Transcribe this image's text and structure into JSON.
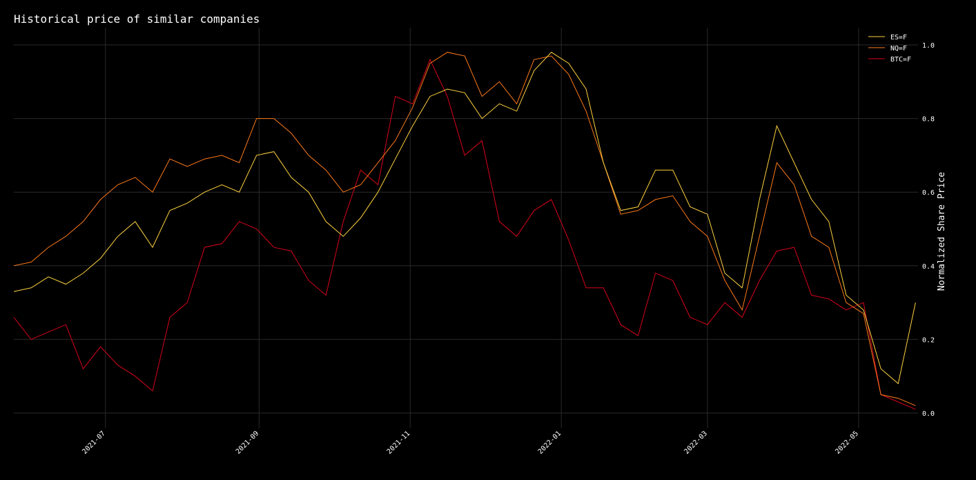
{
  "chart_data": {
    "type": "line",
    "title": "Historical price of similar companies",
    "xlabel": "",
    "ylabel": "Normalized Share Price",
    "ylim": [
      0.0,
      1.0
    ],
    "yticks": [
      0.0,
      0.2,
      0.4,
      0.6,
      0.8,
      1.0
    ],
    "ytick_labels": [
      "0.0",
      "0.2",
      "0.4",
      "0.6",
      "0.8",
      "1.0"
    ],
    "xticks": [
      "2021-07-01",
      "2021-09-01",
      "2021-11-01",
      "2022-01-01",
      "2022-03-01",
      "2022-05-01"
    ],
    "xtick_labels": [
      "2021-07",
      "2021-09",
      "2021-11",
      "2022-01",
      "2022-03",
      "2022-05"
    ],
    "xlim": [
      "2021-05-25",
      "2022-05-25"
    ],
    "grid": true,
    "legend_position": "top-right",
    "colors": {
      "ES=F": "#ffd23f",
      "NQ=F": "#ff7a1a",
      "BTC=F": "#d9001b"
    },
    "series": [
      {
        "name": "ES=F",
        "x": [
          "2021-05-25",
          "2021-06-01",
          "2021-06-08",
          "2021-06-15",
          "2021-06-22",
          "2021-06-29",
          "2021-07-06",
          "2021-07-13",
          "2021-07-20",
          "2021-07-27",
          "2021-08-03",
          "2021-08-10",
          "2021-08-17",
          "2021-08-24",
          "2021-08-31",
          "2021-09-07",
          "2021-09-14",
          "2021-09-21",
          "2021-09-28",
          "2021-10-05",
          "2021-10-12",
          "2021-10-19",
          "2021-10-26",
          "2021-11-02",
          "2021-11-09",
          "2021-11-16",
          "2021-11-23",
          "2021-11-30",
          "2021-12-07",
          "2021-12-14",
          "2021-12-21",
          "2021-12-28",
          "2022-01-04",
          "2022-01-11",
          "2022-01-18",
          "2022-01-25",
          "2022-02-01",
          "2022-02-08",
          "2022-02-15",
          "2022-02-22",
          "2022-03-01",
          "2022-03-08",
          "2022-03-15",
          "2022-03-22",
          "2022-03-29",
          "2022-04-05",
          "2022-04-12",
          "2022-04-19",
          "2022-04-26",
          "2022-05-03",
          "2022-05-10",
          "2022-05-17",
          "2022-05-24"
        ],
        "values": [
          0.33,
          0.34,
          0.37,
          0.35,
          0.38,
          0.42,
          0.48,
          0.52,
          0.45,
          0.55,
          0.57,
          0.6,
          0.62,
          0.6,
          0.7,
          0.71,
          0.64,
          0.6,
          0.52,
          0.48,
          0.53,
          0.6,
          0.69,
          0.78,
          0.86,
          0.88,
          0.87,
          0.8,
          0.84,
          0.82,
          0.93,
          0.98,
          0.95,
          0.88,
          0.68,
          0.55,
          0.56,
          0.66,
          0.66,
          0.56,
          0.54,
          0.38,
          0.34,
          0.58,
          0.78,
          0.68,
          0.58,
          0.52,
          0.32,
          0.28,
          0.12,
          0.08,
          0.3
        ]
      },
      {
        "name": "NQ=F",
        "x": [
          "2021-05-25",
          "2021-06-01",
          "2021-06-08",
          "2021-06-15",
          "2021-06-22",
          "2021-06-29",
          "2021-07-06",
          "2021-07-13",
          "2021-07-20",
          "2021-07-27",
          "2021-08-03",
          "2021-08-10",
          "2021-08-17",
          "2021-08-24",
          "2021-08-31",
          "2021-09-07",
          "2021-09-14",
          "2021-09-21",
          "2021-09-28",
          "2021-10-05",
          "2021-10-12",
          "2021-10-19",
          "2021-10-26",
          "2021-11-02",
          "2021-11-09",
          "2021-11-16",
          "2021-11-23",
          "2021-11-30",
          "2021-12-07",
          "2021-12-14",
          "2021-12-21",
          "2021-12-28",
          "2022-01-04",
          "2022-01-11",
          "2022-01-18",
          "2022-01-25",
          "2022-02-01",
          "2022-02-08",
          "2022-02-15",
          "2022-02-22",
          "2022-03-01",
          "2022-03-08",
          "2022-03-15",
          "2022-03-22",
          "2022-03-29",
          "2022-04-05",
          "2022-04-12",
          "2022-04-19",
          "2022-04-26",
          "2022-05-03",
          "2022-05-10",
          "2022-05-17",
          "2022-05-24"
        ],
        "values": [
          0.4,
          0.41,
          0.45,
          0.48,
          0.52,
          0.58,
          0.62,
          0.64,
          0.6,
          0.69,
          0.67,
          0.69,
          0.7,
          0.68,
          0.8,
          0.8,
          0.76,
          0.7,
          0.66,
          0.6,
          0.62,
          0.68,
          0.74,
          0.83,
          0.95,
          0.98,
          0.97,
          0.86,
          0.9,
          0.84,
          0.96,
          0.97,
          0.92,
          0.82,
          0.68,
          0.54,
          0.55,
          0.58,
          0.59,
          0.52,
          0.48,
          0.36,
          0.28,
          0.48,
          0.68,
          0.62,
          0.48,
          0.45,
          0.3,
          0.27,
          0.05,
          0.04,
          0.02
        ]
      },
      {
        "name": "BTC=F",
        "x": [
          "2021-05-25",
          "2021-06-01",
          "2021-06-08",
          "2021-06-15",
          "2021-06-22",
          "2021-06-29",
          "2021-07-06",
          "2021-07-13",
          "2021-07-20",
          "2021-07-27",
          "2021-08-03",
          "2021-08-10",
          "2021-08-17",
          "2021-08-24",
          "2021-08-31",
          "2021-09-07",
          "2021-09-14",
          "2021-09-21",
          "2021-09-28",
          "2021-10-05",
          "2021-10-12",
          "2021-10-19",
          "2021-10-26",
          "2021-11-02",
          "2021-11-09",
          "2021-11-16",
          "2021-11-23",
          "2021-11-30",
          "2021-12-07",
          "2021-12-14",
          "2021-12-21",
          "2021-12-28",
          "2022-01-04",
          "2022-01-11",
          "2022-01-18",
          "2022-01-25",
          "2022-02-01",
          "2022-02-08",
          "2022-02-15",
          "2022-02-22",
          "2022-03-01",
          "2022-03-08",
          "2022-03-15",
          "2022-03-22",
          "2022-03-29",
          "2022-04-05",
          "2022-04-12",
          "2022-04-19",
          "2022-04-26",
          "2022-05-03",
          "2022-05-10",
          "2022-05-17",
          "2022-05-24"
        ],
        "values": [
          0.26,
          0.2,
          0.22,
          0.24,
          0.12,
          0.18,
          0.13,
          0.1,
          0.06,
          0.26,
          0.3,
          0.45,
          0.46,
          0.52,
          0.5,
          0.45,
          0.44,
          0.36,
          0.32,
          0.52,
          0.66,
          0.62,
          0.86,
          0.84,
          0.96,
          0.86,
          0.7,
          0.74,
          0.52,
          0.48,
          0.55,
          0.58,
          0.47,
          0.34,
          0.34,
          0.24,
          0.21,
          0.38,
          0.36,
          0.26,
          0.24,
          0.3,
          0.26,
          0.36,
          0.44,
          0.45,
          0.32,
          0.31,
          0.28,
          0.3,
          0.05,
          0.03,
          0.01
        ]
      }
    ]
  }
}
